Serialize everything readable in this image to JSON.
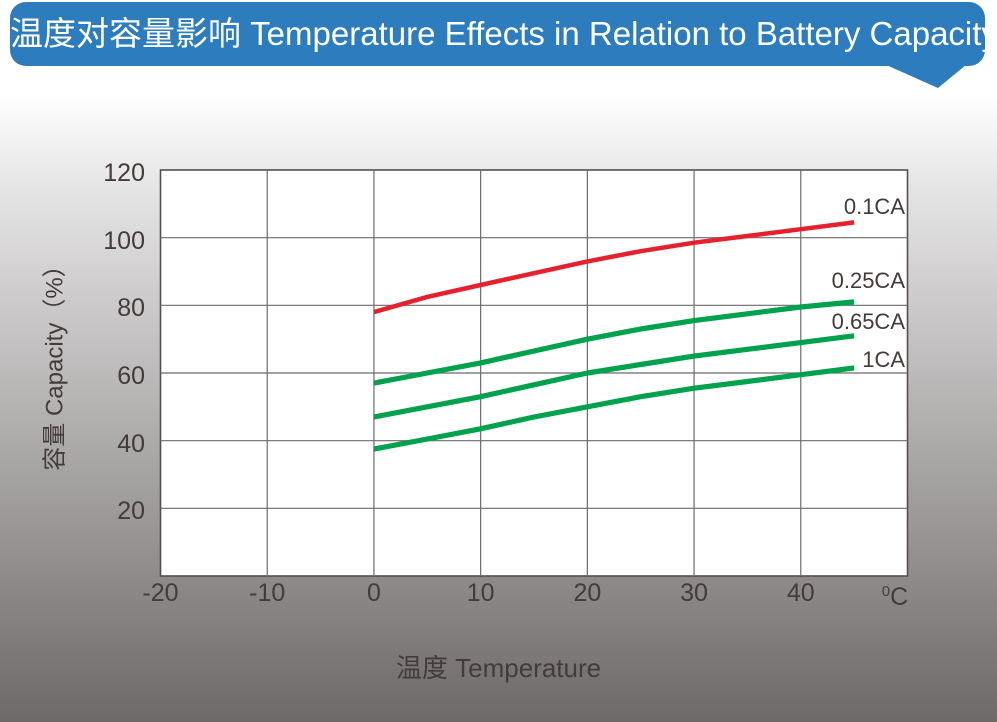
{
  "header": {
    "title": "温度对容量影响 Temperature Effects in Relation to Battery Capacity"
  },
  "colors": {
    "header_bg": "#2d7cbd",
    "header_text": "#ffffff",
    "red_series": "#e5212d",
    "green_series": "#00a24d",
    "grid_line": "#6b6b6b",
    "plot_border": "#544e4e",
    "axis_text": "#443b3b",
    "plot_bg": "#ffffff",
    "page_gradient_bottom": "#6e6969"
  },
  "chart_data": {
    "type": "line",
    "title": "温度对容量影响 Temperature Effects in Relation to Battery Capacity",
    "xlabel": "温度  Temperature",
    "ylabel": "容量  Capacity（%）",
    "x_unit_sup": "0",
    "x_unit_main": "C",
    "xlim": [
      -20,
      50
    ],
    "ylim": [
      0,
      120
    ],
    "x_ticks": [
      -20,
      -10,
      0,
      10,
      20,
      30,
      40
    ],
    "y_ticks": [
      120,
      100,
      80,
      60,
      40,
      20
    ],
    "grid": true,
    "legend_position": "inline labels at right end of each curve",
    "x": [
      0,
      5,
      10,
      15,
      20,
      25,
      30,
      35,
      40,
      45
    ],
    "series": [
      {
        "name": "0.1CA",
        "color": "#e5212d",
        "label_dy": -15,
        "values": [
          78,
          82.5,
          86,
          89.5,
          93,
          96,
          98.5,
          100.5,
          102.5,
          104.5
        ]
      },
      {
        "name": "0.25CA",
        "color": "#00a24d",
        "label_dy": -21,
        "values": [
          57,
          60,
          63,
          66.5,
          70,
          73,
          75.5,
          77.5,
          79.5,
          81
        ]
      },
      {
        "name": "0.65CA",
        "color": "#00a24d",
        "label_dy": -14,
        "values": [
          47,
          50,
          53,
          56.5,
          60,
          62.5,
          65,
          67,
          69,
          71
        ]
      },
      {
        "name": "1CA",
        "color": "#00a24d",
        "label_dy": -8,
        "values": [
          37.5,
          40.5,
          43.5,
          47,
          50,
          53,
          55.5,
          57.5,
          59.5,
          61.5
        ]
      }
    ]
  }
}
